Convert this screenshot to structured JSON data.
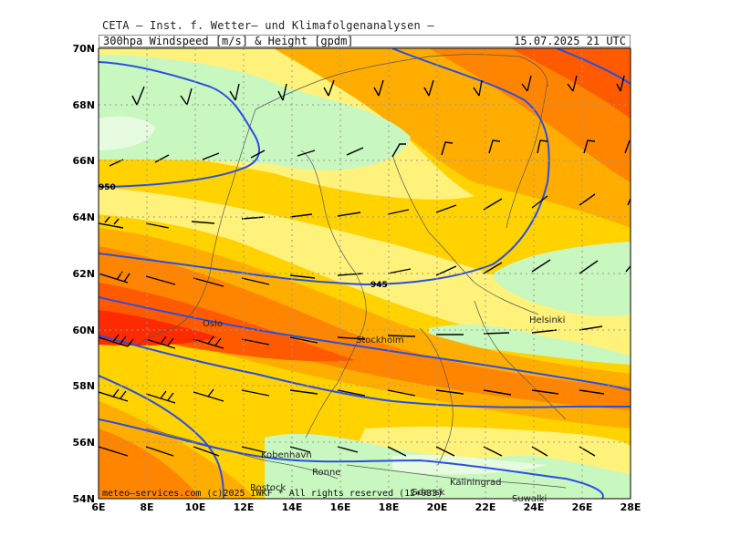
{
  "header": {
    "title_line": "CETA — Inst. f. Wetter— und Klimafolgenanalysen —",
    "product": "300hpa Windspeed [m/s] & Height [gpdm]",
    "valid_time": "15.07.2025 21 UTC"
  },
  "map": {
    "lon_ticks": [
      "6E",
      "8E",
      "10E",
      "12E",
      "14E",
      "16E",
      "18E",
      "20E",
      "22E",
      "24E",
      "26E",
      "28E"
    ],
    "lat_ticks": [
      "54N",
      "56N",
      "58N",
      "60N",
      "62N",
      "64N",
      "66N",
      "68N",
      "70N"
    ],
    "cities": [
      {
        "name": "Oslo"
      },
      {
        "name": "Stockholm"
      },
      {
        "name": "Helsinki"
      },
      {
        "name": "Kobenhavn"
      },
      {
        "name": "Ronne"
      },
      {
        "name": "Rostock"
      },
      {
        "name": "Kaliningrad"
      },
      {
        "name": "Gdansk"
      },
      {
        "name": "Suwalki"
      }
    ],
    "contour_labels": [
      "950",
      "945"
    ],
    "copyright": "meteo—services.com (c)2025 IWKF * All rights reserved (12+033)",
    "colors": {
      "lightest_green": "#e6fbe0",
      "light_green": "#c8f7c0",
      "pale_yellow": "#fff27a",
      "yellow": "#ffd200",
      "orange_yellow": "#ffad00",
      "orange": "#ff8400",
      "red_orange": "#ff5a00",
      "red": "#ff2a00",
      "contour": "#2a4fe0"
    }
  }
}
